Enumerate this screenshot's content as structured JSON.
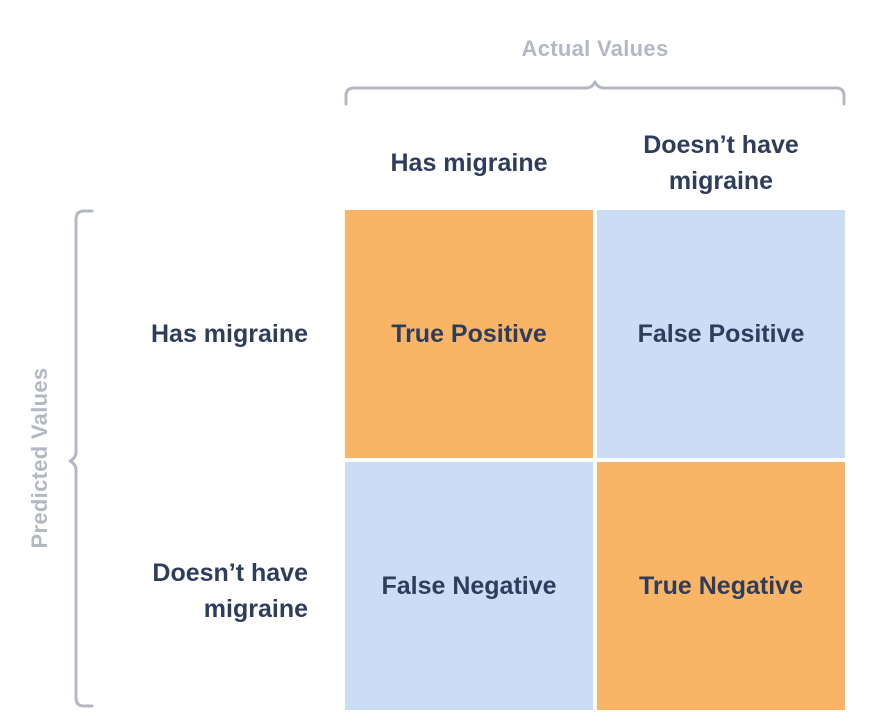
{
  "axes": {
    "actual_title": "Actual Values",
    "predicted_title": "Predicted Values"
  },
  "columns": [
    {
      "label": "Has migraine"
    },
    {
      "label": "Doesn’t have migraine"
    }
  ],
  "rows": [
    {
      "label": "Has migraine"
    },
    {
      "label": "Doesn’t have migraine"
    }
  ],
  "cells": {
    "true_positive": {
      "label": "True Positive",
      "color": "#f9b466"
    },
    "false_positive": {
      "label": "False Positive",
      "color": "#cbdcf5"
    },
    "false_negative": {
      "label": "False Negative",
      "color": "#cbdcf5"
    },
    "true_negative": {
      "label": "True Negative",
      "color": "#f9b466"
    }
  },
  "colors": {
    "text": "#2f3d5c",
    "axis_title": "#b4b8c2",
    "brace": "#b4b8c2"
  }
}
